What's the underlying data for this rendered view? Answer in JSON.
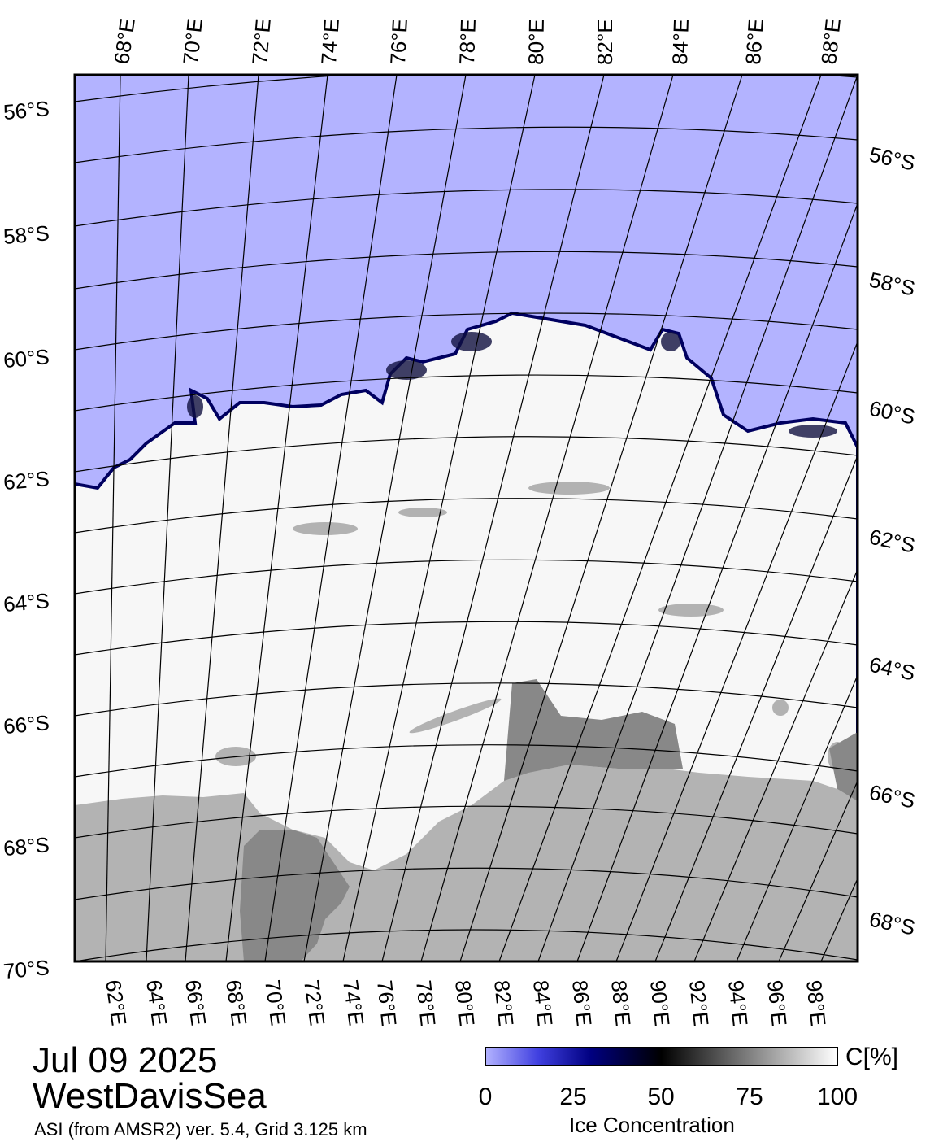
{
  "map": {
    "date": "Jul 09 2025",
    "region": "WestDavisSea",
    "source": "ASI (from AMSR2) ver. 5.4,  Grid 3.125 km",
    "lon_labels_top": [
      "68°E",
      "70°E",
      "72°E",
      "74°E",
      "76°E",
      "78°E",
      "80°E",
      "82°E",
      "84°E",
      "86°E",
      "88°E"
    ],
    "lon_labels_bottom": [
      "62°E",
      "64°E",
      "66°E",
      "68°E",
      "70°E",
      "72°E",
      "74°E",
      "76°E",
      "78°E",
      "80°E",
      "82°E",
      "84°E",
      "86°E",
      "88°E",
      "90°E",
      "92°E",
      "94°E",
      "96°E",
      "98°E"
    ],
    "lat_labels_left": [
      "56°S",
      "58°S",
      "60°S",
      "62°S",
      "64°S",
      "66°S",
      "68°S",
      "70°S"
    ],
    "lat_labels_right": [
      "56°S",
      "58°S",
      "60°S",
      "62°S",
      "64°S",
      "66°S",
      "68°S"
    ],
    "colors": {
      "open_water": "#b3b3ff",
      "land": "#b3b3b3",
      "land_dark": "#8a8a8a",
      "ice_full": "#ffffff",
      "ice_edge": "#000080"
    }
  },
  "colorbar": {
    "label": "Ice Concentration",
    "unit": "C[%]",
    "ticks": [
      "0",
      "25",
      "50",
      "75",
      "100"
    ],
    "stops": [
      "#b3b3ff",
      "#4040e0",
      "#000080",
      "#000000",
      "#808080",
      "#ffffff"
    ]
  }
}
